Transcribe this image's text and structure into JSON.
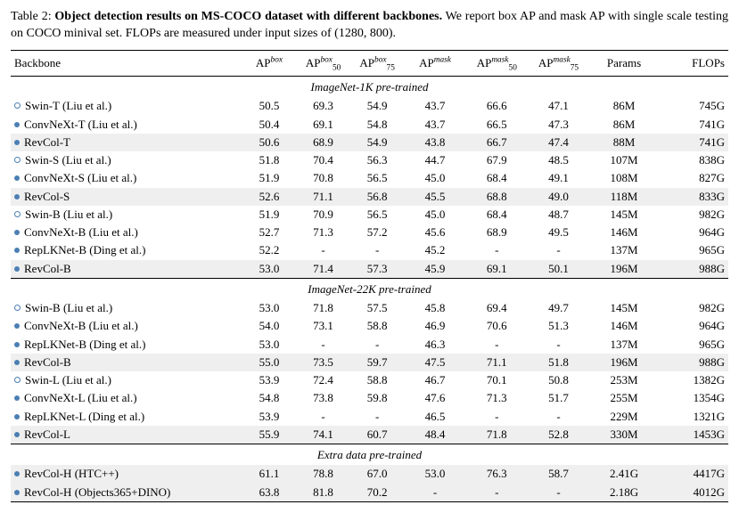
{
  "caption": {
    "label": "Table 2:",
    "title": "Object detection results on MS-COCO dataset with different backbones.",
    "rest": "We report box AP and mask AP with single scale testing on COCO minival set. FLOPs are measured under input sizes of (1280, 800)."
  },
  "columns": {
    "backbone": "Backbone",
    "params": "Params",
    "flops": "FLOPs"
  },
  "metric_labels": {
    "AP": "AP",
    "box": "box",
    "mask": "mask",
    "s50": "50",
    "s75": "75"
  },
  "section_titles": {
    "s1": "ImageNet-1K pre-trained",
    "s2": "ImageNet-22K pre-trained",
    "s3": "Extra data pre-trained"
  },
  "colors": {
    "marker": "#4b7fb3",
    "stripe": "#efefef"
  },
  "font": {
    "family": "Times New Roman",
    "caption_size_pt": 14,
    "table_size_pt": 13
  },
  "rows": {
    "s1": [
      {
        "marker": "open",
        "name": "Swin-T (Liu et al.)",
        "apbox": "50.5",
        "ap50b": "69.3",
        "ap75b": "54.9",
        "apm": "43.7",
        "ap50m": "66.6",
        "ap75m": "47.1",
        "params": "86M",
        "flops": "745G",
        "stripe": false
      },
      {
        "marker": "dot",
        "name": "ConvNeXt-T (Liu et al.)",
        "apbox": "50.4",
        "ap50b": "69.1",
        "ap75b": "54.8",
        "apm": "43.7",
        "ap50m": "66.5",
        "ap75m": "47.3",
        "params": "86M",
        "flops": "741G",
        "stripe": false
      },
      {
        "marker": "dot",
        "name": "RevCol-T",
        "apbox": "50.6",
        "ap50b": "68.9",
        "ap75b": "54.9",
        "apm": "43.8",
        "ap50m": "66.7",
        "ap75m": "47.4",
        "params": "88M",
        "flops": "741G",
        "stripe": true
      },
      {
        "marker": "open",
        "name": "Swin-S (Liu et al.)",
        "apbox": "51.8",
        "ap50b": "70.4",
        "ap75b": "56.3",
        "apm": "44.7",
        "ap50m": "67.9",
        "ap75m": "48.5",
        "params": "107M",
        "flops": "838G",
        "stripe": false
      },
      {
        "marker": "dot",
        "name": "ConvNeXt-S (Liu et al.)",
        "apbox": "51.9",
        "ap50b": "70.8",
        "ap75b": "56.5",
        "apm": "45.0",
        "ap50m": "68.4",
        "ap75m": "49.1",
        "params": "108M",
        "flops": "827G",
        "stripe": false
      },
      {
        "marker": "dot",
        "name": "RevCol-S",
        "apbox": "52.6",
        "ap50b": "71.1",
        "ap75b": "56.8",
        "apm": "45.5",
        "ap50m": "68.8",
        "ap75m": "49.0",
        "params": "118M",
        "flops": "833G",
        "stripe": true
      },
      {
        "marker": "open",
        "name": "Swin-B (Liu et al.)",
        "apbox": "51.9",
        "ap50b": "70.9",
        "ap75b": "56.5",
        "apm": "45.0",
        "ap50m": "68.4",
        "ap75m": "48.7",
        "params": "145M",
        "flops": "982G",
        "stripe": false
      },
      {
        "marker": "dot",
        "name": "ConvNeXt-B (Liu et al.)",
        "apbox": "52.7",
        "ap50b": "71.3",
        "ap75b": "57.2",
        "apm": "45.6",
        "ap50m": "68.9",
        "ap75m": "49.5",
        "params": "146M",
        "flops": "964G",
        "stripe": false
      },
      {
        "marker": "dot",
        "name": "RepLKNet-B (Ding et al.)",
        "apbox": "52.2",
        "ap50b": "-",
        "ap75b": "-",
        "apm": "45.2",
        "ap50m": "-",
        "ap75m": "-",
        "params": "137M",
        "flops": "965G",
        "stripe": false
      },
      {
        "marker": "dot",
        "name": "RevCol-B",
        "apbox": "53.0",
        "ap50b": "71.4",
        "ap75b": "57.3",
        "apm": "45.9",
        "ap50m": "69.1",
        "ap75m": "50.1",
        "params": "196M",
        "flops": "988G",
        "stripe": true
      }
    ],
    "s2": [
      {
        "marker": "open",
        "name": "Swin-B  (Liu et al.)",
        "apbox": "53.0",
        "ap50b": "71.8",
        "ap75b": "57.5",
        "apm": "45.8",
        "ap50m": "69.4",
        "ap75m": "49.7",
        "params": "145M",
        "flops": "982G",
        "stripe": false
      },
      {
        "marker": "dot",
        "name": "ConvNeXt-B  (Liu et al.)",
        "apbox": "54.0",
        "ap50b": "73.1",
        "ap75b": "58.8",
        "apm": "46.9",
        "ap50m": "70.6",
        "ap75m": "51.3",
        "params": "146M",
        "flops": "964G",
        "stripe": false
      },
      {
        "marker": "dot",
        "name": "RepLKNet-B (Ding et al.)",
        "apbox": "53.0",
        "ap50b": "-",
        "ap75b": "-",
        "apm": "46.3",
        "ap50m": "-",
        "ap75m": "-",
        "params": "137M",
        "flops": "965G",
        "stripe": false
      },
      {
        "marker": "dot",
        "name": "RevCol-B",
        "apbox": "55.0",
        "ap50b": "73.5",
        "ap75b": "59.7",
        "apm": "47.5",
        "ap50m": "71.1",
        "ap75m": "51.8",
        "params": "196M",
        "flops": "988G",
        "stripe": true
      },
      {
        "marker": "open",
        "name": "Swin-L (Liu et al.)",
        "apbox": "53.9",
        "ap50b": "72.4",
        "ap75b": "58.8",
        "apm": "46.7",
        "ap50m": "70.1",
        "ap75m": "50.8",
        "params": "253M",
        "flops": "1382G",
        "stripe": false
      },
      {
        "marker": "dot",
        "name": "ConvNeXt-L  (Liu et al.)",
        "apbox": "54.8",
        "ap50b": "73.8",
        "ap75b": "59.8",
        "apm": "47.6",
        "ap50m": "71.3",
        "ap75m": "51.7",
        "params": "255M",
        "flops": "1354G",
        "stripe": false
      },
      {
        "marker": "dot",
        "name": "RepLKNet-L (Ding et al.)",
        "apbox": "53.9",
        "ap50b": "-",
        "ap75b": "-",
        "apm": "46.5",
        "ap50m": "-",
        "ap75m": "-",
        "params": "229M",
        "flops": "1321G",
        "stripe": false
      },
      {
        "marker": "dot",
        "name": "RevCol-L",
        "apbox": "55.9",
        "ap50b": "74.1",
        "ap75b": "60.7",
        "apm": "48.4",
        "ap50m": "71.8",
        "ap75m": "52.8",
        "params": "330M",
        "flops": "1453G",
        "stripe": true
      }
    ],
    "s3": [
      {
        "marker": "dot",
        "name": "RevCol-H (HTC++)",
        "apbox": "61.1",
        "ap50b": "78.8",
        "ap75b": "67.0",
        "apm": "53.0",
        "ap50m": "76.3",
        "ap75m": "58.7",
        "params": "2.41G",
        "flops": "4417G",
        "stripe": true
      },
      {
        "marker": "dot",
        "name": "RevCol-H (Objects365+DINO)",
        "apbox": "63.8",
        "ap50b": "81.8",
        "ap75b": "70.2",
        "apm": "-",
        "ap50m": "-",
        "ap75m": "-",
        "params": "2.18G",
        "flops": "4012G",
        "stripe": true
      }
    ]
  }
}
